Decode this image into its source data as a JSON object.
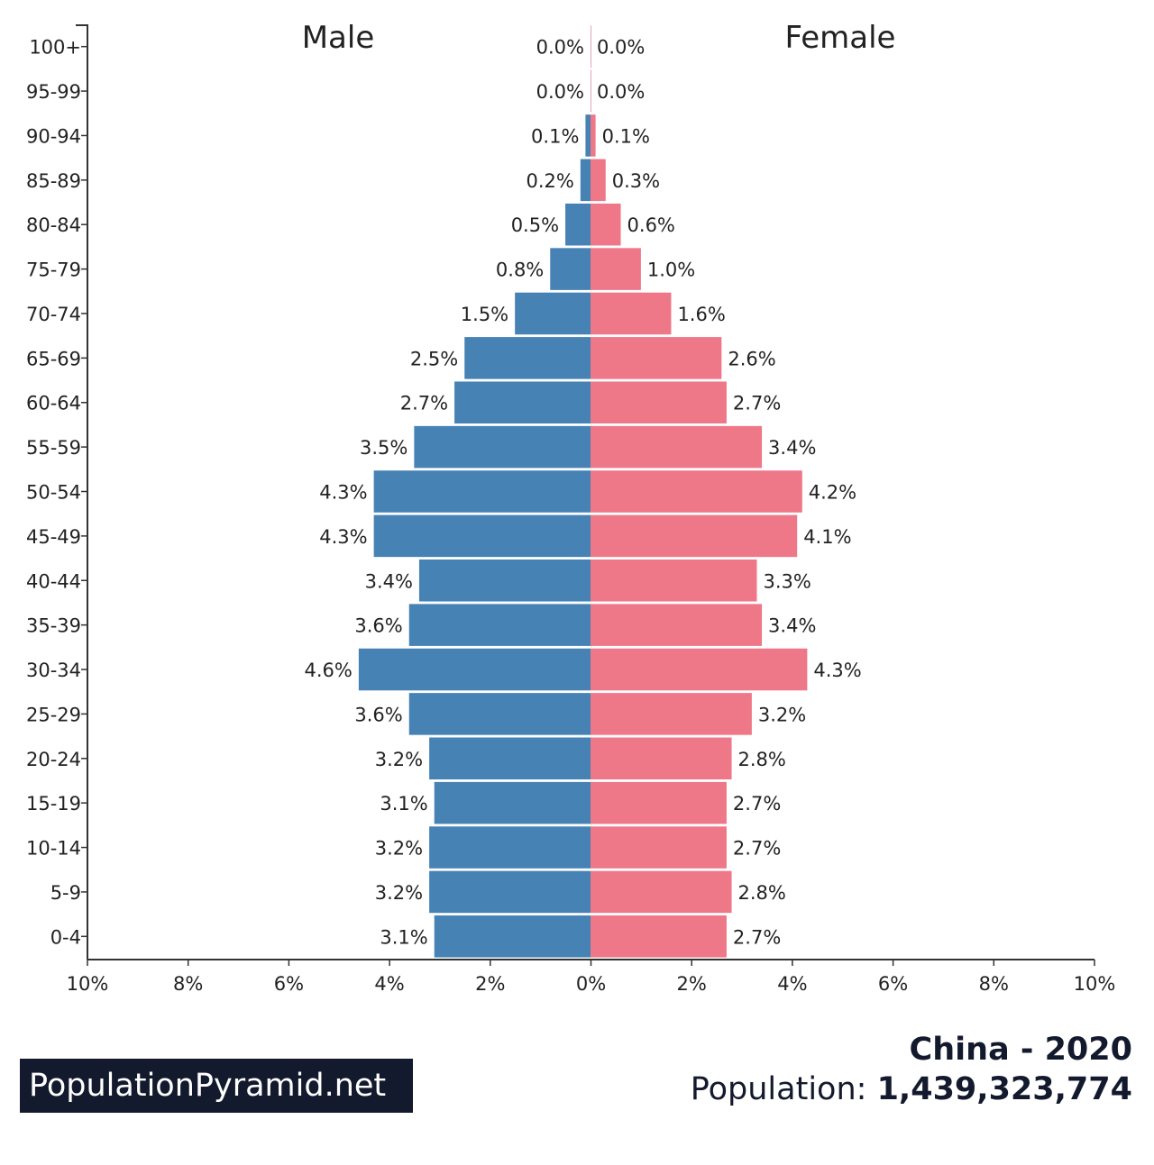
{
  "chart_data": {
    "type": "bar",
    "orientation": "horizontal",
    "subtype": "population-pyramid",
    "categories": [
      "0-4",
      "5-9",
      "10-14",
      "15-19",
      "20-24",
      "25-29",
      "30-34",
      "35-39",
      "40-44",
      "45-49",
      "50-54",
      "55-59",
      "60-64",
      "65-69",
      "70-74",
      "75-79",
      "80-84",
      "85-89",
      "90-94",
      "95-99",
      "100+"
    ],
    "series": [
      {
        "name": "Male",
        "color": "#4682b4",
        "values": [
          3.1,
          3.2,
          3.2,
          3.1,
          3.2,
          3.6,
          4.6,
          3.6,
          3.4,
          4.3,
          4.3,
          3.5,
          2.7,
          2.5,
          1.5,
          0.8,
          0.5,
          0.2,
          0.1,
          0.0,
          0.0
        ],
        "labels": [
          "3.1%",
          "3.2%",
          "3.2%",
          "3.1%",
          "3.2%",
          "3.6%",
          "4.6%",
          "3.6%",
          "3.4%",
          "4.3%",
          "4.3%",
          "3.5%",
          "2.7%",
          "2.5%",
          "1.5%",
          "0.8%",
          "0.5%",
          "0.2%",
          "0.1%",
          "0.0%",
          "0.0%"
        ]
      },
      {
        "name": "Female",
        "color": "#ee7788",
        "values": [
          2.7,
          2.8,
          2.7,
          2.7,
          2.8,
          3.2,
          4.3,
          3.4,
          3.3,
          4.1,
          4.2,
          3.4,
          2.7,
          2.6,
          1.6,
          1.0,
          0.6,
          0.3,
          0.1,
          0.0,
          0.0
        ],
        "labels": [
          "2.7%",
          "2.8%",
          "2.7%",
          "2.7%",
          "2.8%",
          "3.2%",
          "4.3%",
          "3.4%",
          "3.3%",
          "4.1%",
          "4.2%",
          "3.4%",
          "2.7%",
          "2.6%",
          "1.6%",
          "1.0%",
          "0.6%",
          "0.3%",
          "0.1%",
          "0.0%",
          "0.0%"
        ]
      }
    ],
    "xlim": [
      -10,
      10
    ],
    "x_ticks": [
      "10%",
      "8%",
      "6%",
      "4%",
      "2%",
      "0%",
      "2%",
      "4%",
      "6%",
      "8%",
      "10%"
    ],
    "grid": false,
    "title": "China - 2020"
  },
  "footer": {
    "brand": "PopulationPyramid.net",
    "title": "China - 2020",
    "population_label": "Population:",
    "population_value": "1,439,323,774"
  }
}
